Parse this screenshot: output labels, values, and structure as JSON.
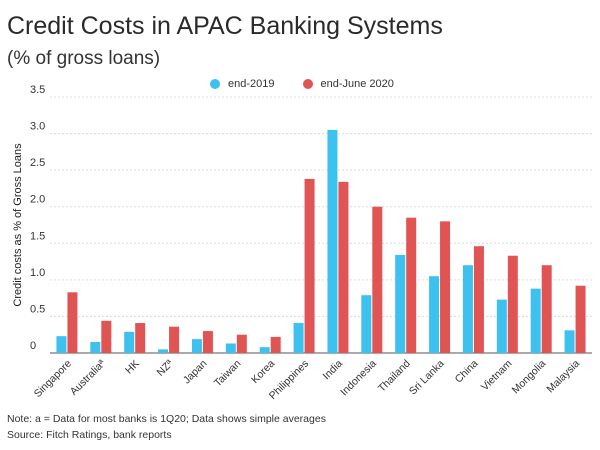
{
  "title": "Credit Costs in APAC Banking Systems",
  "subtitle": "(% of gross loans)",
  "colors": {
    "series1": "#3dc1ef",
    "series2": "#e15454",
    "grid": "#dcdcdc",
    "axis": "#555555"
  },
  "chart_data": {
    "type": "bar",
    "ylabel": "Credit costs as % of Gross Loans",
    "xlabel": "",
    "ylim": [
      0,
      3.5
    ],
    "yticks": [
      "0",
      "0.5",
      "1.0",
      "1.5",
      "2.0",
      "2.5",
      "3.0",
      "3.5"
    ],
    "categories": [
      "Singapore",
      "Australiaª",
      "HK",
      "NZª",
      "Japan",
      "Taiwan",
      "Korea",
      "Philippines",
      "India",
      "Indonesia",
      "Thailand",
      "Sri Lanka",
      "China",
      "Vietnam",
      "Mongolia",
      "Malaysia"
    ],
    "series": [
      {
        "name": "end-2019",
        "values": [
          0.23,
          0.15,
          0.29,
          0.05,
          0.19,
          0.13,
          0.08,
          0.41,
          3.05,
          0.79,
          1.34,
          1.05,
          1.2,
          0.73,
          0.88,
          0.31
        ]
      },
      {
        "name": "end-June 2020",
        "values": [
          0.83,
          0.44,
          0.41,
          0.36,
          0.3,
          0.25,
          0.22,
          2.38,
          2.34,
          2.0,
          1.85,
          1.8,
          1.46,
          1.33,
          1.2,
          0.92
        ]
      }
    ]
  },
  "notes": {
    "note": "Note: a = Data for most banks is 1Q20;  Data shows simple averages",
    "source": "Source: Fitch Ratings, bank reports"
  }
}
